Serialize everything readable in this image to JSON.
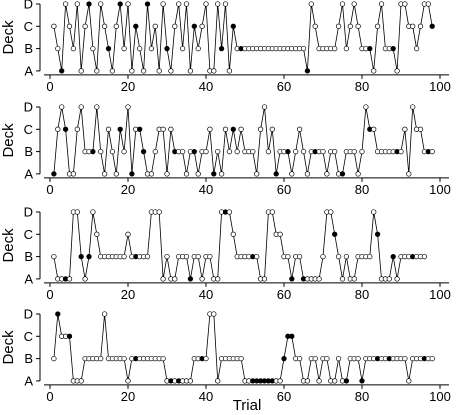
{
  "chart_data": {
    "type": "line",
    "shared_x_label": "Trial",
    "x_ticks": [
      0,
      20,
      40,
      60,
      80,
      100
    ],
    "xlim": [
      0,
      100
    ],
    "y_categories": [
      "A",
      "B",
      "C",
      "D"
    ],
    "panels": [
      {
        "ylabel": "Deck",
        "choices": "CBADCBDACDBADCBACDBDACBADBCADBACDBDACBCDAADBDACBBBBBBBBBBBBBBBBBBADCBBBBBCDBCDCBBBACDBBBADDCCBCDDC",
        "filled_trials": [
          3,
          10,
          15,
          18,
          22,
          25,
          30,
          37,
          44,
          47,
          49,
          66,
          82,
          88,
          98
        ]
      },
      {
        "ylabel": "Deck",
        "choices": "ACDCAACDBBBDBACBACBDACCBAABCCACBBBABBABBCABACBCBCBBBACDBCABBBABCBABBBBABBAABBBABDCCBBBBBBBCADCCBBB",
        "filled_trials": [
          1,
          4,
          11,
          18,
          21,
          23,
          24,
          32,
          37,
          42,
          47,
          58,
          61,
          68,
          75,
          82,
          89,
          97
        ]
      },
      {
        "ylabel": "Deck",
        "choices": "BAAAADDBABDCBBBBBBBCBBBBBDDDABAABBBABBABBAADDDCBBBBBBAADDCCBBABBAAAAABDDCBABAABBBBDCAAABABBBBBBB",
        "filled_trials": [
          4,
          8,
          10,
          22,
          36,
          45,
          52,
          62,
          65,
          73,
          84,
          88,
          93
        ]
      },
      {
        "ylabel": "Deck",
        "choices": "BDCCCAAABBBBBDBBBBBABBBBBBBBBAAAAAAABBBBDDABBBBBBAAAAAAAAAABCCBBAABBABBAABAABBBABBBBBBBBBBBABBBBBB",
        "filled_trials": [
          2,
          5,
          22,
          31,
          33,
          39,
          52,
          53,
          54,
          55,
          56,
          57,
          60,
          61,
          62,
          76,
          80,
          84,
          87,
          96
        ]
      }
    ]
  }
}
